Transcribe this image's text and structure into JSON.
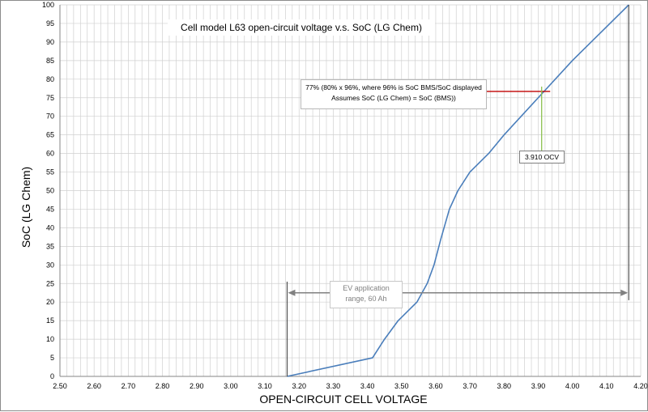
{
  "chart_data": {
    "type": "line",
    "title": "Cell model L63 open-circuit voltage v.s. SoC (LG Chem)",
    "xlabel": "OPEN-CIRCUIT CELL VOLTAGE",
    "ylabel": "SoC (LG Chem)",
    "xlim": [
      2.5,
      4.2
    ],
    "ylim": [
      0,
      100
    ],
    "x_ticks": [
      "2.50",
      "2.60",
      "2.70",
      "2.80",
      "2.90",
      "3.00",
      "3.10",
      "3.20",
      "3.30",
      "3.40",
      "3.50",
      "3.60",
      "3.70",
      "3.80",
      "3.90",
      "4.00",
      "4.10",
      "4.20"
    ],
    "y_ticks": [
      "0",
      "5",
      "10",
      "15",
      "20",
      "25",
      "30",
      "35",
      "40",
      "45",
      "50",
      "55",
      "60",
      "65",
      "70",
      "75",
      "80",
      "85",
      "90",
      "95",
      "100"
    ],
    "grid": true,
    "series": [
      {
        "color": "#4a7ebb",
        "x": [
          3.165,
          3.415,
          3.45,
          3.49,
          3.545,
          3.575,
          3.595,
          3.615,
          3.64,
          3.665,
          3.7,
          3.755,
          3.8,
          3.9,
          4.0,
          4.165
        ],
        "y": [
          0,
          5,
          10,
          15,
          20,
          25,
          30,
          37,
          45,
          50,
          55,
          60,
          65,
          75,
          85,
          100
        ]
      }
    ],
    "annotations": {
      "note_line1": "77% (80% x 96%, where 96% is SoC BMS/SoC displayed",
      "note_line2": "Assumes SoC (LG Chem) = SoC (BMS))",
      "ocv_label": "3.910 OCV",
      "range_line1": "EV application",
      "range_line2": "range, 60 Ah",
      "marker_soc": 76.7,
      "marker_voltage": 3.91,
      "range_start": 3.165,
      "range_end": 4.165
    },
    "colors": {
      "line": "#4a7ebb",
      "grid": "#d0d0d0",
      "marker_h": "#c00000",
      "marker_v": "#8cc152",
      "range_arrow": "#808080",
      "vertical_bounds": "#505050"
    }
  }
}
